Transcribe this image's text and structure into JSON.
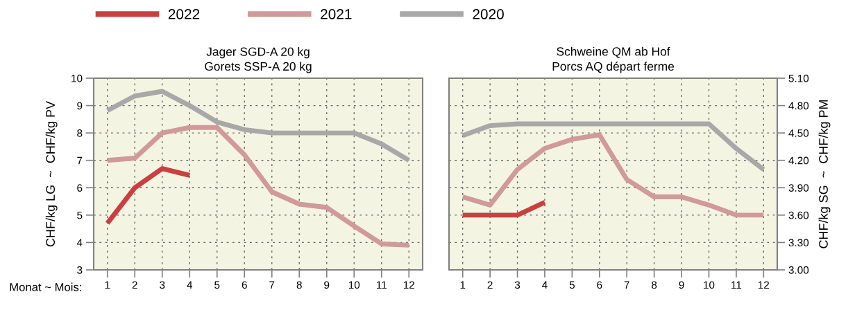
{
  "chart_data": [
    {
      "type": "line",
      "title": "Jager SGD-A 20 kg\nGorets SSP-A 20 kg",
      "xlabel": "Monat ~ Mois:",
      "ylabel": "CHF/kg LG  ~  CHF/kg PV",
      "categories": [
        "1",
        "2",
        "3",
        "4",
        "5",
        "6",
        "7",
        "8",
        "9",
        "10",
        "11",
        "12"
      ],
      "ylim": [
        3,
        10
      ],
      "yticks": [
        3,
        4,
        5,
        6,
        7,
        8,
        9,
        10
      ],
      "grid": true,
      "legend": "top",
      "line_style": "solid",
      "marker": "none",
      "series": [
        {
          "name": "2022",
          "color": "#c84040",
          "values": [
            4.7,
            6.0,
            6.7,
            6.45,
            null,
            null,
            null,
            null,
            null,
            null,
            null,
            null
          ]
        },
        {
          "name": "2021",
          "color": "#d09a9a",
          "values": [
            7.0,
            7.08,
            8.0,
            8.2,
            8.2,
            7.2,
            5.85,
            5.4,
            5.28,
            4.6,
            3.95,
            3.9
          ]
        },
        {
          "name": "2020",
          "color": "#a8a8a8",
          "values": [
            8.82,
            9.35,
            9.52,
            9.0,
            8.4,
            8.12,
            8.0,
            8.0,
            8.0,
            8.0,
            7.6,
            7.0
          ]
        }
      ]
    },
    {
      "type": "line",
      "title": "Schweine QM ab Hof\nPorcs AQ départ ferme",
      "y2label": "CHF/kg SG  ~  CHF/kg PM",
      "categories": [
        "1",
        "2",
        "3",
        "4",
        "5",
        "6",
        "7",
        "8",
        "9",
        "10",
        "11",
        "12"
      ],
      "y2lim": [
        3.0,
        5.1
      ],
      "y2ticks": [
        {
          "value": 3.0,
          "label": "3.00"
        },
        {
          "value": 3.3,
          "label": "3.30"
        },
        {
          "value": 3.6,
          "label": "3.60"
        },
        {
          "value": 3.9,
          "label": "3.90"
        },
        {
          "value": 4.2,
          "label": "4.20"
        },
        {
          "value": 4.5,
          "label": "4.50"
        },
        {
          "value": 4.8,
          "label": "4.80"
        },
        {
          "value": 5.1,
          "label": "5.10"
        }
      ],
      "grid": true,
      "line_style": "solid",
      "marker": "none",
      "series": [
        {
          "color": "#c84040",
          "axis": "y2",
          "values": [
            3.6,
            3.6,
            3.6,
            3.74,
            null,
            null,
            null,
            null,
            null,
            null,
            null,
            null
          ]
        },
        {
          "color": "#d09a9a",
          "axis": "y2",
          "values": [
            3.8,
            3.71,
            4.1,
            4.33,
            4.43,
            4.48,
            3.99,
            3.8,
            3.8,
            3.71,
            3.6,
            3.6
          ]
        },
        {
          "color": "#a8a8a8",
          "axis": "y2",
          "values": [
            4.47,
            4.58,
            4.6,
            4.6,
            4.6,
            4.6,
            4.6,
            4.6,
            4.6,
            4.6,
            4.33,
            4.1
          ]
        }
      ]
    }
  ]
}
